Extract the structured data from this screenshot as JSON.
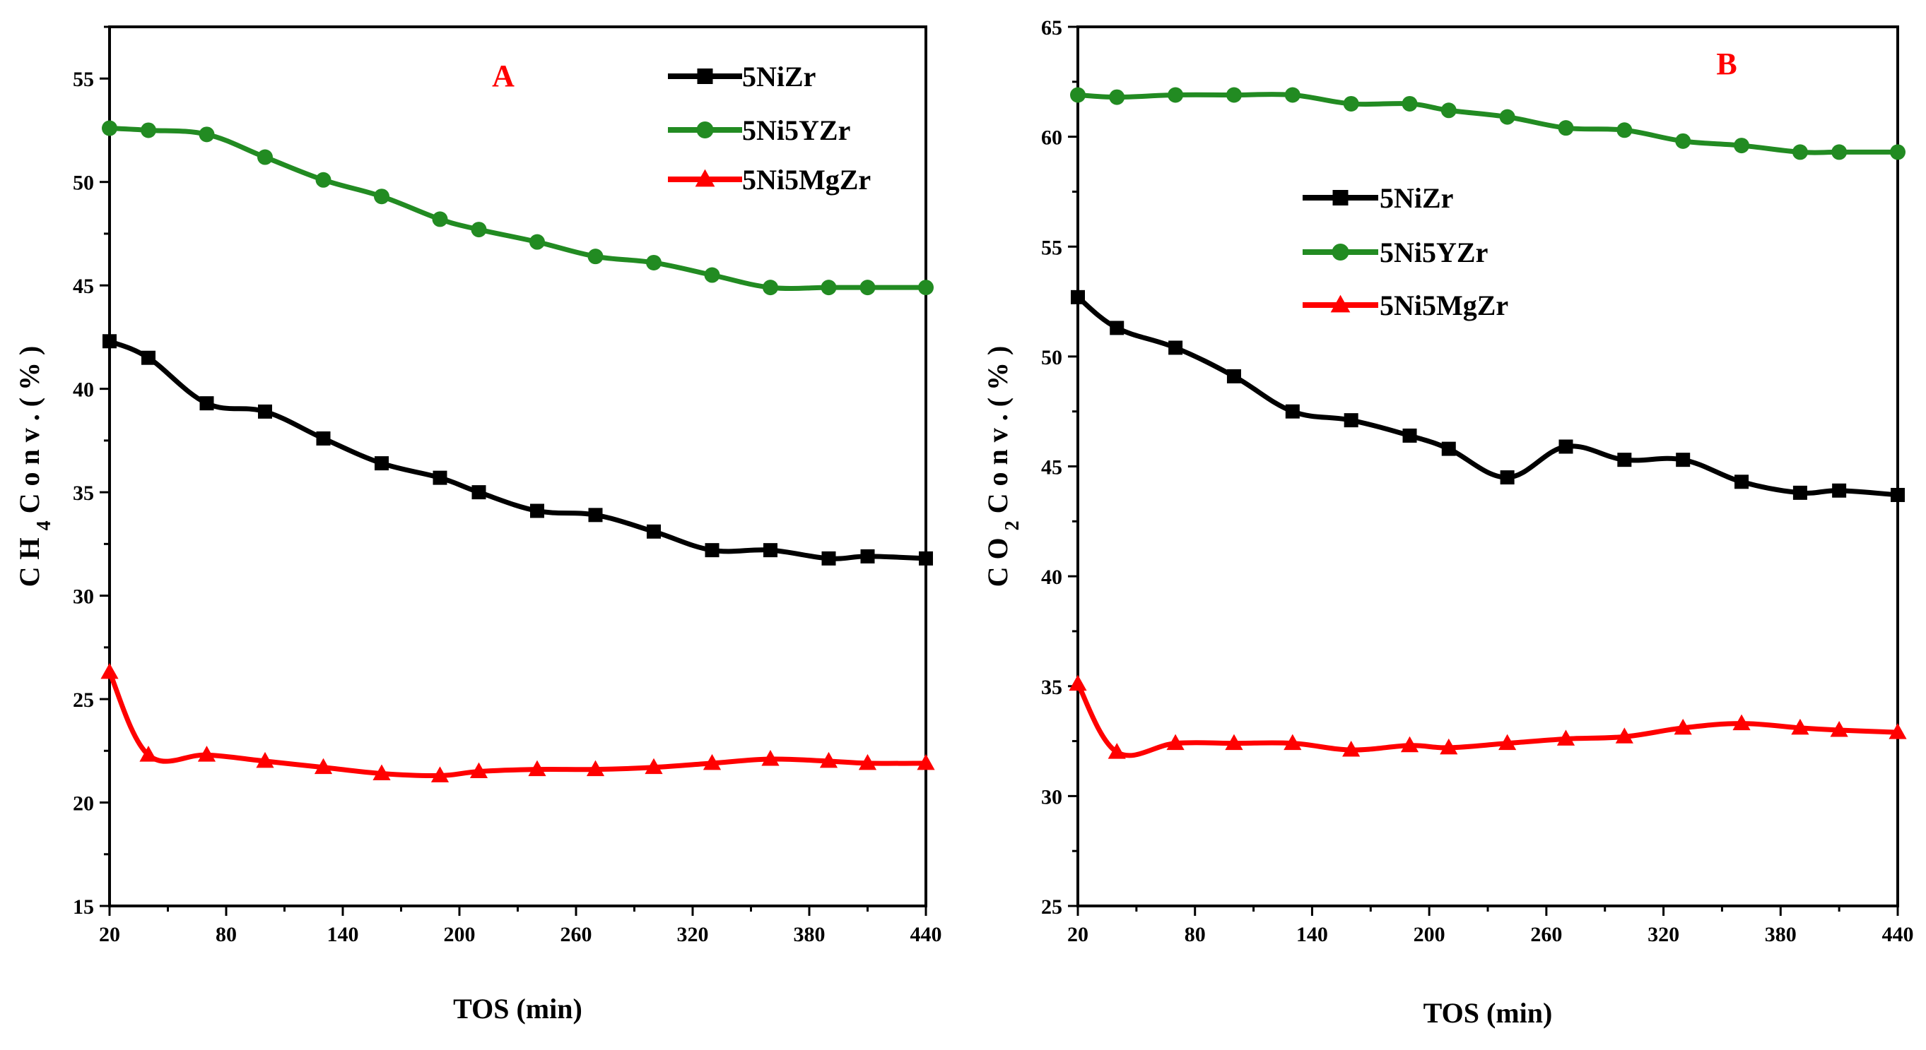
{
  "chart_data": [
    {
      "type": "line",
      "panel_label": "A",
      "xlabel": "TOS (min)",
      "ylabel": "C H 4 C o n v . ( % )",
      "ylabel_parts": {
        "pre": "C H",
        "sub": "4",
        "post": " C o n v . ( % )"
      },
      "xlim": [
        20,
        440
      ],
      "ylim": [
        15,
        57.5
      ],
      "xticks": [
        20,
        80,
        140,
        200,
        260,
        320,
        380,
        440
      ],
      "yticks": [
        15,
        20,
        25,
        30,
        35,
        40,
        45,
        50,
        55
      ],
      "legend_position": "top-right",
      "series": [
        {
          "name": "5NiZr",
          "color": "#000000",
          "marker": "square",
          "x": [
            20,
            40,
            70,
            100,
            130,
            160,
            190,
            210,
            240,
            270,
            300,
            330,
            360,
            390,
            410,
            440
          ],
          "y": [
            42.3,
            41.5,
            39.3,
            38.9,
            37.6,
            36.4,
            35.7,
            35.0,
            34.1,
            33.9,
            33.1,
            32.2,
            32.2,
            31.8,
            31.9,
            31.8
          ]
        },
        {
          "name": "5Ni5YZr",
          "color": "#228B22",
          "marker": "circle",
          "x": [
            20,
            40,
            70,
            100,
            130,
            160,
            190,
            210,
            240,
            270,
            300,
            330,
            360,
            390,
            410,
            440
          ],
          "y": [
            52.6,
            52.5,
            52.3,
            51.2,
            50.1,
            49.3,
            48.2,
            47.7,
            47.1,
            46.4,
            46.1,
            45.5,
            44.9,
            44.9,
            44.9,
            44.9
          ]
        },
        {
          "name": "5Ni5MgZr",
          "color": "#FF0000",
          "marker": "triangle",
          "x": [
            20,
            40,
            70,
            100,
            130,
            160,
            190,
            210,
            240,
            270,
            300,
            330,
            360,
            390,
            410,
            440
          ],
          "y": [
            26.3,
            22.3,
            22.3,
            22.0,
            21.7,
            21.4,
            21.3,
            21.5,
            21.6,
            21.6,
            21.7,
            21.9,
            22.1,
            22.0,
            21.9,
            21.9
          ]
        }
      ]
    },
    {
      "type": "line",
      "panel_label": "B",
      "xlabel": "TOS (min)",
      "ylabel": "C O 2 C o n v . ( % )",
      "ylabel_parts": {
        "pre": "C O",
        "sub": "2",
        "post": " C o n v . ( % )"
      },
      "xlim": [
        20,
        440
      ],
      "ylim": [
        25,
        65
      ],
      "xticks": [
        20,
        80,
        140,
        200,
        260,
        320,
        380,
        440
      ],
      "yticks": [
        25,
        30,
        35,
        40,
        45,
        50,
        55,
        60,
        65
      ],
      "legend_position": "upper-left",
      "series": [
        {
          "name": "5NiZr",
          "color": "#000000",
          "marker": "square",
          "x": [
            20,
            40,
            70,
            100,
            130,
            160,
            190,
            210,
            240,
            270,
            300,
            330,
            360,
            390,
            410,
            440
          ],
          "y": [
            52.7,
            51.3,
            50.4,
            49.1,
            47.5,
            47.1,
            46.4,
            45.8,
            44.5,
            45.9,
            45.3,
            45.3,
            44.3,
            43.8,
            43.9,
            43.7
          ]
        },
        {
          "name": "5Ni5YZr",
          "color": "#228B22",
          "marker": "circle",
          "x": [
            20,
            40,
            70,
            100,
            130,
            160,
            190,
            210,
            240,
            270,
            300,
            330,
            360,
            390,
            410,
            440
          ],
          "y": [
            61.9,
            61.8,
            61.9,
            61.9,
            61.9,
            61.5,
            61.5,
            61.2,
            60.9,
            60.4,
            60.3,
            59.8,
            59.6,
            59.3,
            59.3,
            59.3
          ]
        },
        {
          "name": "5Ni5MgZr",
          "color": "#FF0000",
          "marker": "triangle",
          "x": [
            20,
            40,
            70,
            100,
            130,
            160,
            190,
            210,
            240,
            270,
            300,
            330,
            360,
            390,
            410,
            440
          ],
          "y": [
            35.1,
            32.0,
            32.4,
            32.4,
            32.4,
            32.1,
            32.3,
            32.2,
            32.4,
            32.6,
            32.7,
            33.1,
            33.3,
            33.1,
            33.0,
            32.9
          ]
        }
      ]
    }
  ]
}
